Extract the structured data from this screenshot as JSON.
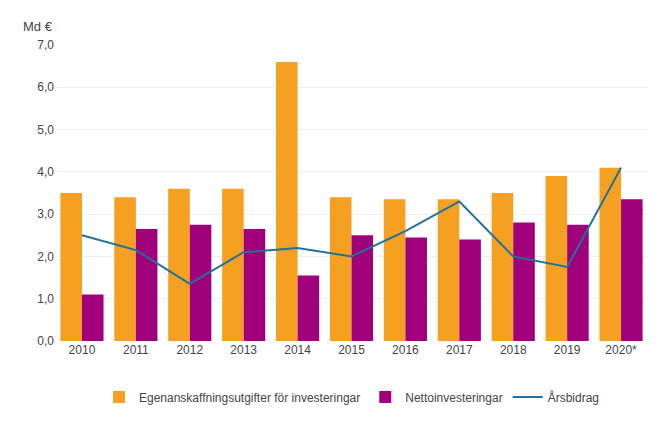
{
  "chart_data": {
    "type": "bar",
    "ylabel": "Md €",
    "categories": [
      "2010",
      "2011",
      "2012",
      "2013",
      "2014",
      "2015",
      "2016",
      "2017",
      "2018",
      "2019",
      "2020*"
    ],
    "series": [
      {
        "name": "Egenanskaffningsutgifter för investeringar",
        "type": "bar",
        "color": "#F5A020",
        "values": [
          3.5,
          3.4,
          3.6,
          3.6,
          6.6,
          3.4,
          3.35,
          3.35,
          3.5,
          3.9,
          4.1
        ]
      },
      {
        "name": "Nettoinvesteringar",
        "type": "bar",
        "color": "#A0007C",
        "values": [
          1.1,
          2.65,
          2.75,
          2.65,
          1.55,
          2.5,
          2.45,
          2.4,
          2.8,
          2.75,
          3.35
        ]
      },
      {
        "name": "Årsbidrag",
        "type": "line",
        "color": "#2070A0",
        "values": [
          2.5,
          2.15,
          1.35,
          2.1,
          2.2,
          2.0,
          2.6,
          3.3,
          2.0,
          1.75,
          4.1
        ]
      }
    ],
    "ylim": [
      0.0,
      7.0
    ],
    "yticks": [
      {
        "value": 0.0,
        "label": "0,0"
      },
      {
        "value": 1.0,
        "label": "1,0"
      },
      {
        "value": 2.0,
        "label": "2,0"
      },
      {
        "value": 3.0,
        "label": "3,0"
      },
      {
        "value": 4.0,
        "label": "4,0"
      },
      {
        "value": 5.0,
        "label": "5,0"
      },
      {
        "value": 6.0,
        "label": "6,0"
      },
      {
        "value": 7.0,
        "label": "7,0"
      }
    ],
    "grid": true,
    "legend": "bottom"
  }
}
